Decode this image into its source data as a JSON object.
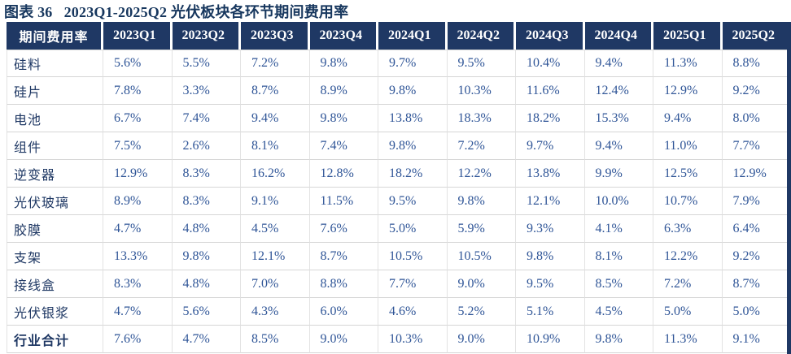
{
  "title": "图表 36   2023Q1-2025Q2 光伏板块各环节期间费用率",
  "colors": {
    "header_bg": "#1F3864",
    "header_text": "#FFFFFF",
    "value_text": "#2F5597",
    "label_text": "#1F3864",
    "grid": "#D6D6D6",
    "title_text": "#17375E"
  },
  "chart_data": {
    "type": "table",
    "title": "2023Q1-2025Q2 光伏板块各环节期间费用率",
    "columns": [
      "期间费用率",
      "2023Q1",
      "2023Q2",
      "2023Q3",
      "2023Q4",
      "2024Q1",
      "2024Q2",
      "2024Q3",
      "2024Q4",
      "2025Q1",
      "2025Q2"
    ],
    "rows": [
      {
        "label": "硅料",
        "bold": false,
        "values": [
          "5.6%",
          "5.5%",
          "7.2%",
          "9.8%",
          "9.7%",
          "9.5%",
          "10.4%",
          "9.4%",
          "11.3%",
          "8.8%"
        ]
      },
      {
        "label": "硅片",
        "bold": false,
        "values": [
          "7.8%",
          "3.3%",
          "8.7%",
          "8.9%",
          "9.8%",
          "10.3%",
          "11.6%",
          "12.4%",
          "12.9%",
          "9.2%"
        ]
      },
      {
        "label": "电池",
        "bold": false,
        "values": [
          "6.7%",
          "7.4%",
          "9.4%",
          "9.8%",
          "13.8%",
          "18.3%",
          "18.2%",
          "15.3%",
          "9.4%",
          "8.0%"
        ]
      },
      {
        "label": "组件",
        "bold": false,
        "values": [
          "7.5%",
          "2.6%",
          "8.1%",
          "7.4%",
          "9.8%",
          "7.2%",
          "9.7%",
          "9.4%",
          "11.0%",
          "7.7%"
        ]
      },
      {
        "label": "逆变器",
        "bold": false,
        "values": [
          "12.9%",
          "8.3%",
          "16.2%",
          "12.8%",
          "18.2%",
          "12.2%",
          "13.8%",
          "9.9%",
          "12.5%",
          "12.9%"
        ]
      },
      {
        "label": "光伏玻璃",
        "bold": false,
        "values": [
          "8.9%",
          "8.3%",
          "9.1%",
          "11.5%",
          "9.5%",
          "9.8%",
          "12.1%",
          "10.0%",
          "10.7%",
          "7.9%"
        ]
      },
      {
        "label": "胶膜",
        "bold": false,
        "values": [
          "4.7%",
          "4.8%",
          "4.5%",
          "7.6%",
          "5.0%",
          "5.9%",
          "9.3%",
          "4.1%",
          "6.3%",
          "6.4%"
        ]
      },
      {
        "label": "支架",
        "bold": false,
        "values": [
          "13.3%",
          "9.8%",
          "12.1%",
          "8.7%",
          "10.5%",
          "10.5%",
          "9.8%",
          "8.1%",
          "12.2%",
          "9.2%"
        ]
      },
      {
        "label": "接线盒",
        "bold": false,
        "values": [
          "8.3%",
          "4.8%",
          "7.0%",
          "8.8%",
          "7.7%",
          "9.0%",
          "9.5%",
          "8.5%",
          "7.2%",
          "8.7%"
        ]
      },
      {
        "label": "光伏银浆",
        "bold": false,
        "values": [
          "4.7%",
          "5.6%",
          "4.3%",
          "6.0%",
          "4.6%",
          "5.2%",
          "5.1%",
          "4.5%",
          "5.0%",
          "5.0%"
        ]
      },
      {
        "label": "行业合计",
        "bold": true,
        "values": [
          "7.6%",
          "4.7%",
          "8.5%",
          "9.0%",
          "10.3%",
          "9.0%",
          "10.9%",
          "9.8%",
          "11.3%",
          "9.1%"
        ]
      }
    ]
  }
}
